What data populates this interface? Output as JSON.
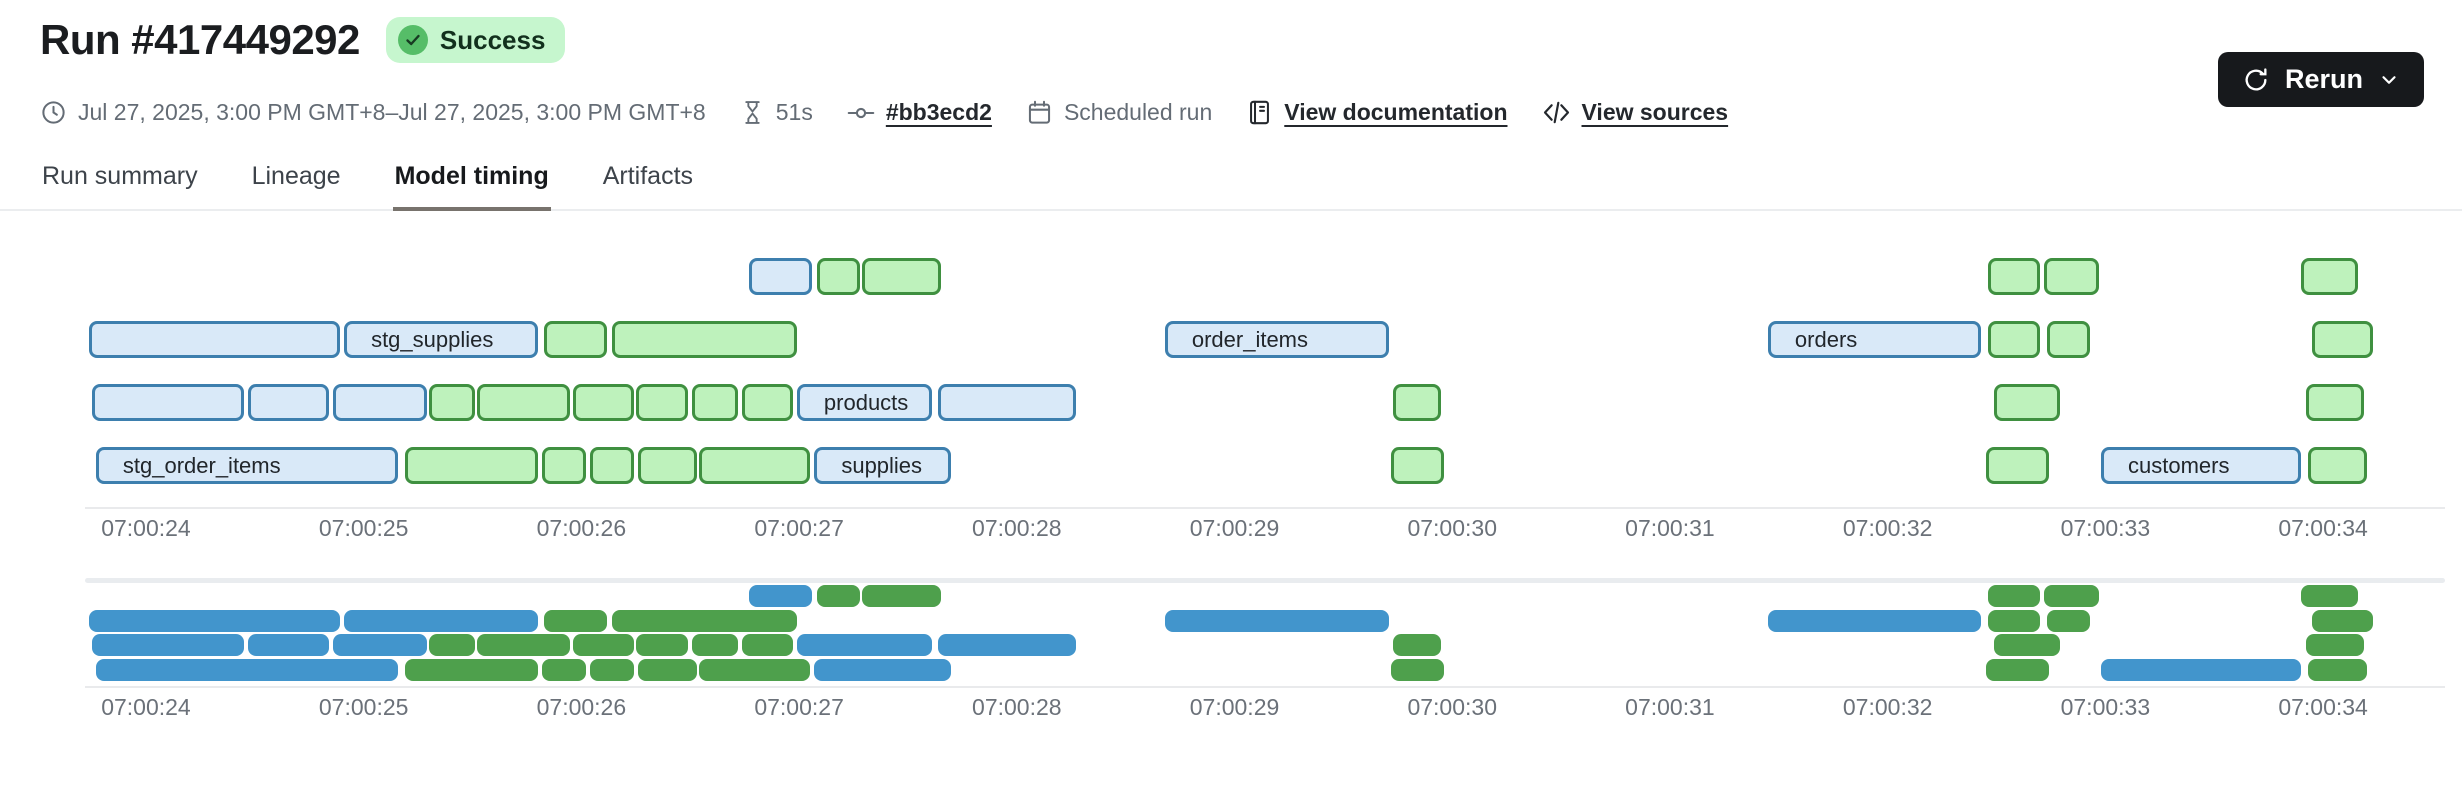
{
  "header": {
    "title": "Run #417449292",
    "status_badge": "Success",
    "rerun_label": "Rerun",
    "meta": {
      "date_range": "Jul 27, 2025, 3:00 PM GMT+8–Jul 27, 2025, 3:00 PM GMT+8",
      "duration": "51s",
      "commit": "#bb3ecd2",
      "trigger": "Scheduled run",
      "docs_link": "View documentation",
      "sources_link": "View sources"
    },
    "icons": [
      "clock-icon",
      "hourglass-icon",
      "commit-icon",
      "calendar-icon",
      "document-icon",
      "code-icon",
      "refresh-icon",
      "chevron-down-icon",
      "success-check-icon"
    ]
  },
  "tabs": [
    {
      "label": "Run summary",
      "active": false
    },
    {
      "label": "Lineage",
      "active": false
    },
    {
      "label": "Model timing",
      "active": true
    },
    {
      "label": "Artifacts",
      "active": false
    }
  ],
  "chart_data": {
    "type": "gantt",
    "title": "Model timing",
    "x_ticks": [
      "07:00:24",
      "07:00:25",
      "07:00:26",
      "07:00:27",
      "07:00:28",
      "07:00:29",
      "07:00:30",
      "07:00:31",
      "07:00:32",
      "07:00:33",
      "07:00:34"
    ],
    "x_domain": {
      "start_s": 23.72,
      "end_s": 34.56,
      "unit": "seconds after 07:00:00",
      "tick_start_s": 24,
      "tick_step_s": 1
    },
    "legend": "none",
    "grid": "off",
    "colors": {
      "main_blue_fill": "#d9e9f8",
      "main_blue_border": "#3d7fae",
      "main_green_fill": "#bef2bc",
      "main_green_border": "#3f9040",
      "mini_blue": "#4295cc",
      "mini_green": "#4ea04c"
    },
    "rows": [
      {
        "bars": [
          {
            "color": "blue",
            "start": 26.77,
            "end": 27.06
          },
          {
            "color": "green",
            "start": 27.08,
            "end": 27.28
          },
          {
            "color": "green",
            "start": 27.29,
            "end": 27.65
          },
          {
            "color": "green",
            "start": 32.46,
            "end": 32.7
          },
          {
            "color": "green",
            "start": 32.72,
            "end": 32.97
          },
          {
            "color": "green",
            "start": 33.9,
            "end": 34.16
          }
        ]
      },
      {
        "bars": [
          {
            "color": "blue",
            "start": 23.74,
            "end": 24.89
          },
          {
            "color": "blue",
            "start": 24.91,
            "end": 25.8,
            "label": "stg_supplies"
          },
          {
            "color": "green",
            "start": 25.83,
            "end": 26.12
          },
          {
            "color": "green",
            "start": 26.14,
            "end": 26.99
          },
          {
            "color": "blue",
            "start": 28.68,
            "end": 29.71,
            "label": "order_items"
          },
          {
            "color": "blue",
            "start": 31.45,
            "end": 32.43,
            "label": "orders"
          },
          {
            "color": "green",
            "start": 32.46,
            "end": 32.7
          },
          {
            "color": "green",
            "start": 32.73,
            "end": 32.93
          },
          {
            "color": "green",
            "start": 33.95,
            "end": 34.23
          }
        ]
      },
      {
        "bars": [
          {
            "color": "blue",
            "start": 23.75,
            "end": 24.45
          },
          {
            "color": "blue",
            "start": 24.47,
            "end": 24.84
          },
          {
            "color": "blue",
            "start": 24.86,
            "end": 25.29
          },
          {
            "color": "green",
            "start": 25.3,
            "end": 25.51
          },
          {
            "color": "green",
            "start": 25.52,
            "end": 25.95
          },
          {
            "color": "green",
            "start": 25.96,
            "end": 26.24
          },
          {
            "color": "green",
            "start": 26.25,
            "end": 26.49
          },
          {
            "color": "green",
            "start": 26.51,
            "end": 26.72
          },
          {
            "color": "green",
            "start": 26.74,
            "end": 26.97
          },
          {
            "color": "blue",
            "start": 26.99,
            "end": 27.61,
            "label": "products"
          },
          {
            "color": "blue",
            "start": 27.64,
            "end": 28.27
          },
          {
            "color": "green",
            "start": 29.73,
            "end": 29.95
          },
          {
            "color": "green",
            "start": 32.49,
            "end": 32.79
          },
          {
            "color": "green",
            "start": 33.92,
            "end": 34.19
          }
        ]
      },
      {
        "bars": [
          {
            "color": "blue",
            "start": 23.77,
            "end": 25.16,
            "label": "stg_order_items"
          },
          {
            "color": "green",
            "start": 25.19,
            "end": 25.8
          },
          {
            "color": "green",
            "start": 25.82,
            "end": 26.02
          },
          {
            "color": "green",
            "start": 26.04,
            "end": 26.24
          },
          {
            "color": "green",
            "start": 26.26,
            "end": 26.53
          },
          {
            "color": "green",
            "start": 26.54,
            "end": 27.05
          },
          {
            "color": "blue",
            "start": 27.07,
            "end": 27.7,
            "label": "supplies"
          },
          {
            "color": "green",
            "start": 29.72,
            "end": 29.96
          },
          {
            "color": "green",
            "start": 32.45,
            "end": 32.74
          },
          {
            "color": "blue",
            "start": 32.98,
            "end": 33.9,
            "label": "customers"
          },
          {
            "color": "green",
            "start": 33.93,
            "end": 34.2
          }
        ]
      }
    ],
    "minimap": {
      "mirrors_main_rows": true
    }
  }
}
